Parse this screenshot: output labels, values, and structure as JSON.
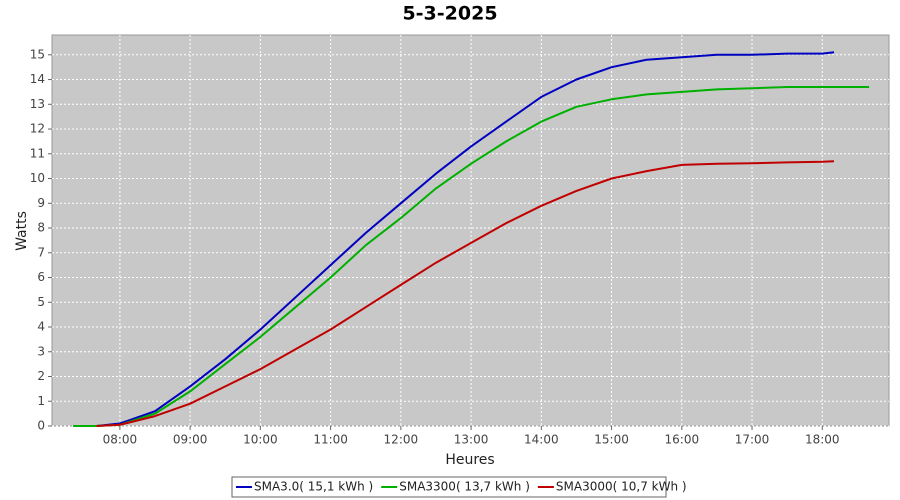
{
  "chart_data": {
    "type": "line",
    "title": "5-3-2025",
    "x_label": "Heures",
    "y_label": "Watts",
    "x": [
      "07:20",
      "07:40",
      "08:00",
      "08:30",
      "09:00",
      "09:30",
      "10:00",
      "10:30",
      "11:00",
      "11:30",
      "12:00",
      "12:30",
      "13:00",
      "13:30",
      "14:00",
      "14:30",
      "15:00",
      "15:30",
      "16:00",
      "16:30",
      "17:00",
      "17:30",
      "18:00",
      "18:10",
      "18:40"
    ],
    "xlim": [
      "07:02",
      "18:57"
    ],
    "xticks": [
      "08:00",
      "09:00",
      "10:00",
      "11:00",
      "12:00",
      "13:00",
      "14:00",
      "15:00",
      "16:00",
      "17:00",
      "18:00"
    ],
    "ylim": [
      0,
      15.8
    ],
    "yticks": [
      0,
      1,
      2,
      3,
      4,
      5,
      6,
      7,
      8,
      9,
      10,
      11,
      12,
      13,
      14,
      15
    ],
    "grid": true,
    "legend": "bottom",
    "series": [
      {
        "name": "SMA3.0( 15,1 kWh )",
        "color": "#0000c0",
        "values": [
          null,
          0,
          0.1,
          0.6,
          1.6,
          2.7,
          3.9,
          5.2,
          6.5,
          7.8,
          9.0,
          10.2,
          11.3,
          12.3,
          13.3,
          14.0,
          14.5,
          14.8,
          14.9,
          15.0,
          15.0,
          15.05,
          15.05,
          15.1,
          null
        ]
      },
      {
        "name": "SMA3300( 13,7 kWh )",
        "color": "#00b000",
        "values": [
          0,
          0,
          0.05,
          0.5,
          1.4,
          2.5,
          3.6,
          4.8,
          6.0,
          7.3,
          8.4,
          9.6,
          10.6,
          11.5,
          12.3,
          12.9,
          13.2,
          13.4,
          13.5,
          13.6,
          13.65,
          13.7,
          13.7,
          13.7,
          13.7
        ]
      },
      {
        "name": "SMA3000( 10,7 kWh )",
        "color": "#c00000",
        "values": [
          null,
          0,
          0.05,
          0.4,
          0.9,
          1.6,
          2.3,
          3.1,
          3.9,
          4.8,
          5.7,
          6.6,
          7.4,
          8.2,
          8.9,
          9.5,
          10.0,
          10.3,
          10.55,
          10.6,
          10.62,
          10.65,
          10.68,
          10.7,
          null
        ]
      }
    ]
  }
}
